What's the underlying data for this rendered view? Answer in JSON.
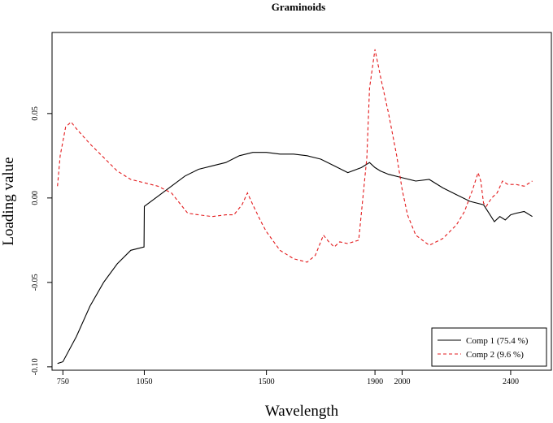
{
  "chart_data": {
    "type": "line",
    "title": "Graminoids",
    "xlabel": "Wavelength",
    "ylabel": "Loading value",
    "xlim": [
      710,
      2550
    ],
    "ylim": [
      -0.102,
      0.098
    ],
    "x_ticks": [
      {
        "value": 750,
        "label": "750"
      },
      {
        "value": 1050,
        "label": "1050"
      },
      {
        "value": 1500,
        "label": "1500"
      },
      {
        "value": 1900,
        "label": "1900"
      },
      {
        "value": 2000,
        "label": "2000"
      },
      {
        "value": 2400,
        "label": "2400"
      }
    ],
    "y_ticks": [
      {
        "value": -0.1,
        "label": "-0.10"
      },
      {
        "value": -0.05,
        "label": "-0.05"
      },
      {
        "value": 0.0,
        "label": "0.00"
      },
      {
        "value": 0.05,
        "label": "0.05"
      }
    ],
    "legend_position": "bottom-right",
    "grid": false,
    "series": [
      {
        "name": "Comp 1 (75.4 %)",
        "color": "#000000",
        "dash": "solid",
        "x": [
          730,
          750,
          800,
          850,
          900,
          950,
          1000,
          1049,
          1050,
          1100,
          1150,
          1200,
          1250,
          1300,
          1350,
          1400,
          1450,
          1500,
          1550,
          1600,
          1650,
          1700,
          1750,
          1800,
          1850,
          1880,
          1900,
          1920,
          1950,
          2000,
          2050,
          2100,
          2150,
          2200,
          2250,
          2300,
          2320,
          2340,
          2360,
          2380,
          2400,
          2420,
          2450,
          2480
        ],
        "y": [
          -0.098,
          -0.097,
          -0.082,
          -0.064,
          -0.05,
          -0.039,
          -0.031,
          -0.029,
          -0.005,
          0.001,
          0.007,
          0.013,
          0.017,
          0.019,
          0.021,
          0.025,
          0.027,
          0.027,
          0.026,
          0.026,
          0.025,
          0.023,
          0.019,
          0.015,
          0.018,
          0.021,
          0.018,
          0.016,
          0.014,
          0.012,
          0.01,
          0.011,
          0.006,
          0.002,
          -0.002,
          -0.004,
          -0.009,
          -0.014,
          -0.011,
          -0.013,
          -0.01,
          -0.009,
          -0.008,
          -0.011
        ]
      },
      {
        "name": "Comp 2 (9.6 %)",
        "color": "#e31a1c",
        "dash": "dashed",
        "x": [
          730,
          740,
          760,
          780,
          800,
          850,
          900,
          950,
          1000,
          1050,
          1100,
          1150,
          1180,
          1210,
          1250,
          1300,
          1350,
          1380,
          1410,
          1430,
          1450,
          1480,
          1500,
          1550,
          1600,
          1650,
          1680,
          1710,
          1730,
          1750,
          1770,
          1800,
          1840,
          1870,
          1880,
          1900,
          1920,
          1950,
          1980,
          2000,
          2020,
          2050,
          2100,
          2150,
          2200,
          2230,
          2260,
          2280,
          2290,
          2300,
          2310,
          2330,
          2350,
          2370,
          2390,
          2420,
          2450,
          2480
        ],
        "y": [
          0.007,
          0.025,
          0.042,
          0.045,
          0.041,
          0.032,
          0.024,
          0.016,
          0.011,
          0.009,
          0.007,
          0.003,
          -0.003,
          -0.009,
          -0.01,
          -0.011,
          -0.01,
          -0.01,
          -0.004,
          0.003,
          -0.004,
          -0.014,
          -0.02,
          -0.031,
          -0.036,
          -0.038,
          -0.034,
          -0.022,
          -0.026,
          -0.029,
          -0.026,
          -0.027,
          -0.025,
          0.024,
          0.065,
          0.088,
          0.072,
          0.05,
          0.025,
          0.005,
          -0.01,
          -0.022,
          -0.028,
          -0.024,
          -0.016,
          -0.008,
          0.005,
          0.015,
          0.01,
          -0.003,
          -0.005,
          0.0,
          0.003,
          0.01,
          0.008,
          0.008,
          0.007,
          0.01
        ]
      }
    ]
  }
}
